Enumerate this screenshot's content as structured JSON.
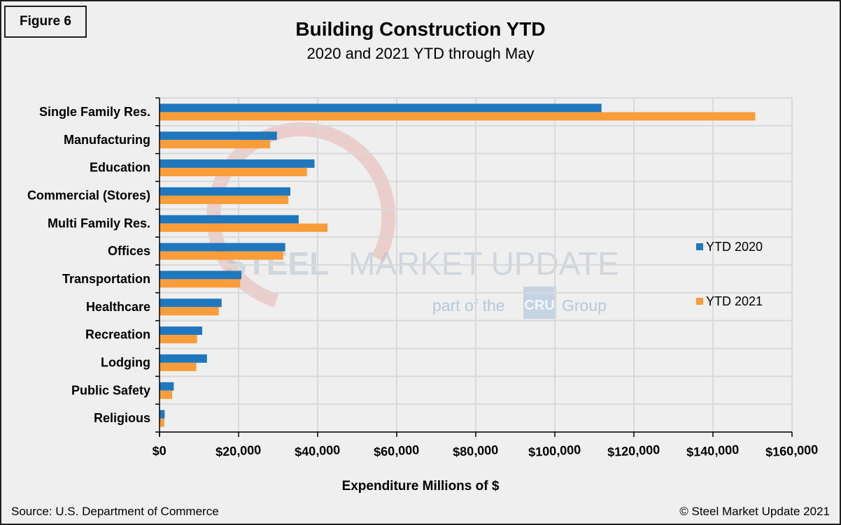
{
  "figure_label": "Figure 6",
  "source": "Source: U.S. Department of Commerce",
  "copyright": "© Steel Market Update 2021",
  "watermark": {
    "line1_bold": "STEEL",
    "line1_rest": "MARKET UPDATE",
    "line2_prefix": "part of the",
    "line2_badge": "CRU",
    "line2_suffix": "Group"
  },
  "colors": {
    "ytd2020": "#1f77be",
    "ytd2021": "#f99d3a",
    "grid": "#d9d9d9",
    "axis": "#000000"
  },
  "chart_data": {
    "type": "bar",
    "orientation": "horizontal",
    "title": "Building Construction YTD",
    "subtitle": "2020 and 2021 YTD through May",
    "xlabel": "Expenditure Millions of $",
    "ylabel": "",
    "xlim": [
      0,
      160000
    ],
    "x_ticks": [
      0,
      20000,
      40000,
      60000,
      80000,
      100000,
      120000,
      140000,
      160000
    ],
    "x_tick_labels": [
      "$0",
      "$20,000",
      "$40,000",
      "$60,000",
      "$80,000",
      "$100,000",
      "$120,000",
      "$140,000",
      "$160,000"
    ],
    "grid": true,
    "legend_position": "right",
    "categories": [
      "Single Family Res.",
      "Manufacturing",
      "Education",
      "Commercial (Stores)",
      "Multi Family Res.",
      "Offices",
      "Transportation",
      "Healthcare",
      "Recreation",
      "Lodging",
      "Public Safety",
      "Religious"
    ],
    "series": [
      {
        "name": "YTD 2020",
        "values": [
          111800,
          29700,
          39200,
          33100,
          35200,
          31800,
          20700,
          15700,
          10800,
          12000,
          3600,
          1300
        ]
      },
      {
        "name": "YTD 2021",
        "values": [
          150700,
          28000,
          37300,
          32600,
          42500,
          31300,
          20400,
          15000,
          9500,
          9300,
          3200,
          1200
        ]
      }
    ]
  }
}
